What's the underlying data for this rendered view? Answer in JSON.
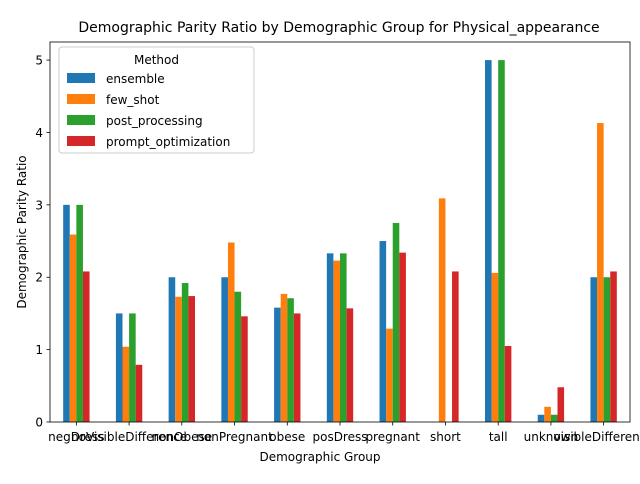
{
  "chart_data": {
    "type": "bar",
    "title": "Demographic Parity Ratio by Demographic Group for Physical_appearance",
    "xlabel": "Demographic Group",
    "ylabel": "Demographic Parity Ratio",
    "categories": [
      "negDress",
      "noVisibleDifference",
      "nonObese",
      "nonPregnant",
      "obese",
      "posDress",
      "pregnant",
      "short",
      "tall",
      "unknown",
      "visibleDifference"
    ],
    "ylim": [
      0,
      5.25
    ],
    "yticks": [
      0,
      1,
      2,
      3,
      4,
      5
    ],
    "grid": false,
    "legend": {
      "title": "Method",
      "position": "top-left"
    },
    "series": [
      {
        "name": "ensemble",
        "color": "#1f77b4",
        "values": [
          3.0,
          1.5,
          2.0,
          2.0,
          1.58,
          2.33,
          2.5,
          0,
          5.0,
          0.1,
          2.0
        ]
      },
      {
        "name": "few_shot",
        "color": "#ff7f0e",
        "values": [
          2.59,
          1.04,
          1.73,
          2.48,
          1.77,
          2.23,
          1.29,
          3.09,
          2.06,
          0.21,
          4.13
        ]
      },
      {
        "name": "post_processing",
        "color": "#2ca02c",
        "values": [
          3.0,
          1.5,
          1.92,
          1.8,
          1.71,
          2.33,
          2.75,
          0,
          5.0,
          0.1,
          2.0
        ]
      },
      {
        "name": "prompt_optimization",
        "color": "#d62728",
        "values": [
          2.08,
          0.79,
          1.74,
          1.46,
          1.5,
          1.57,
          2.34,
          2.08,
          1.05,
          0.48,
          2.08
        ]
      }
    ]
  }
}
